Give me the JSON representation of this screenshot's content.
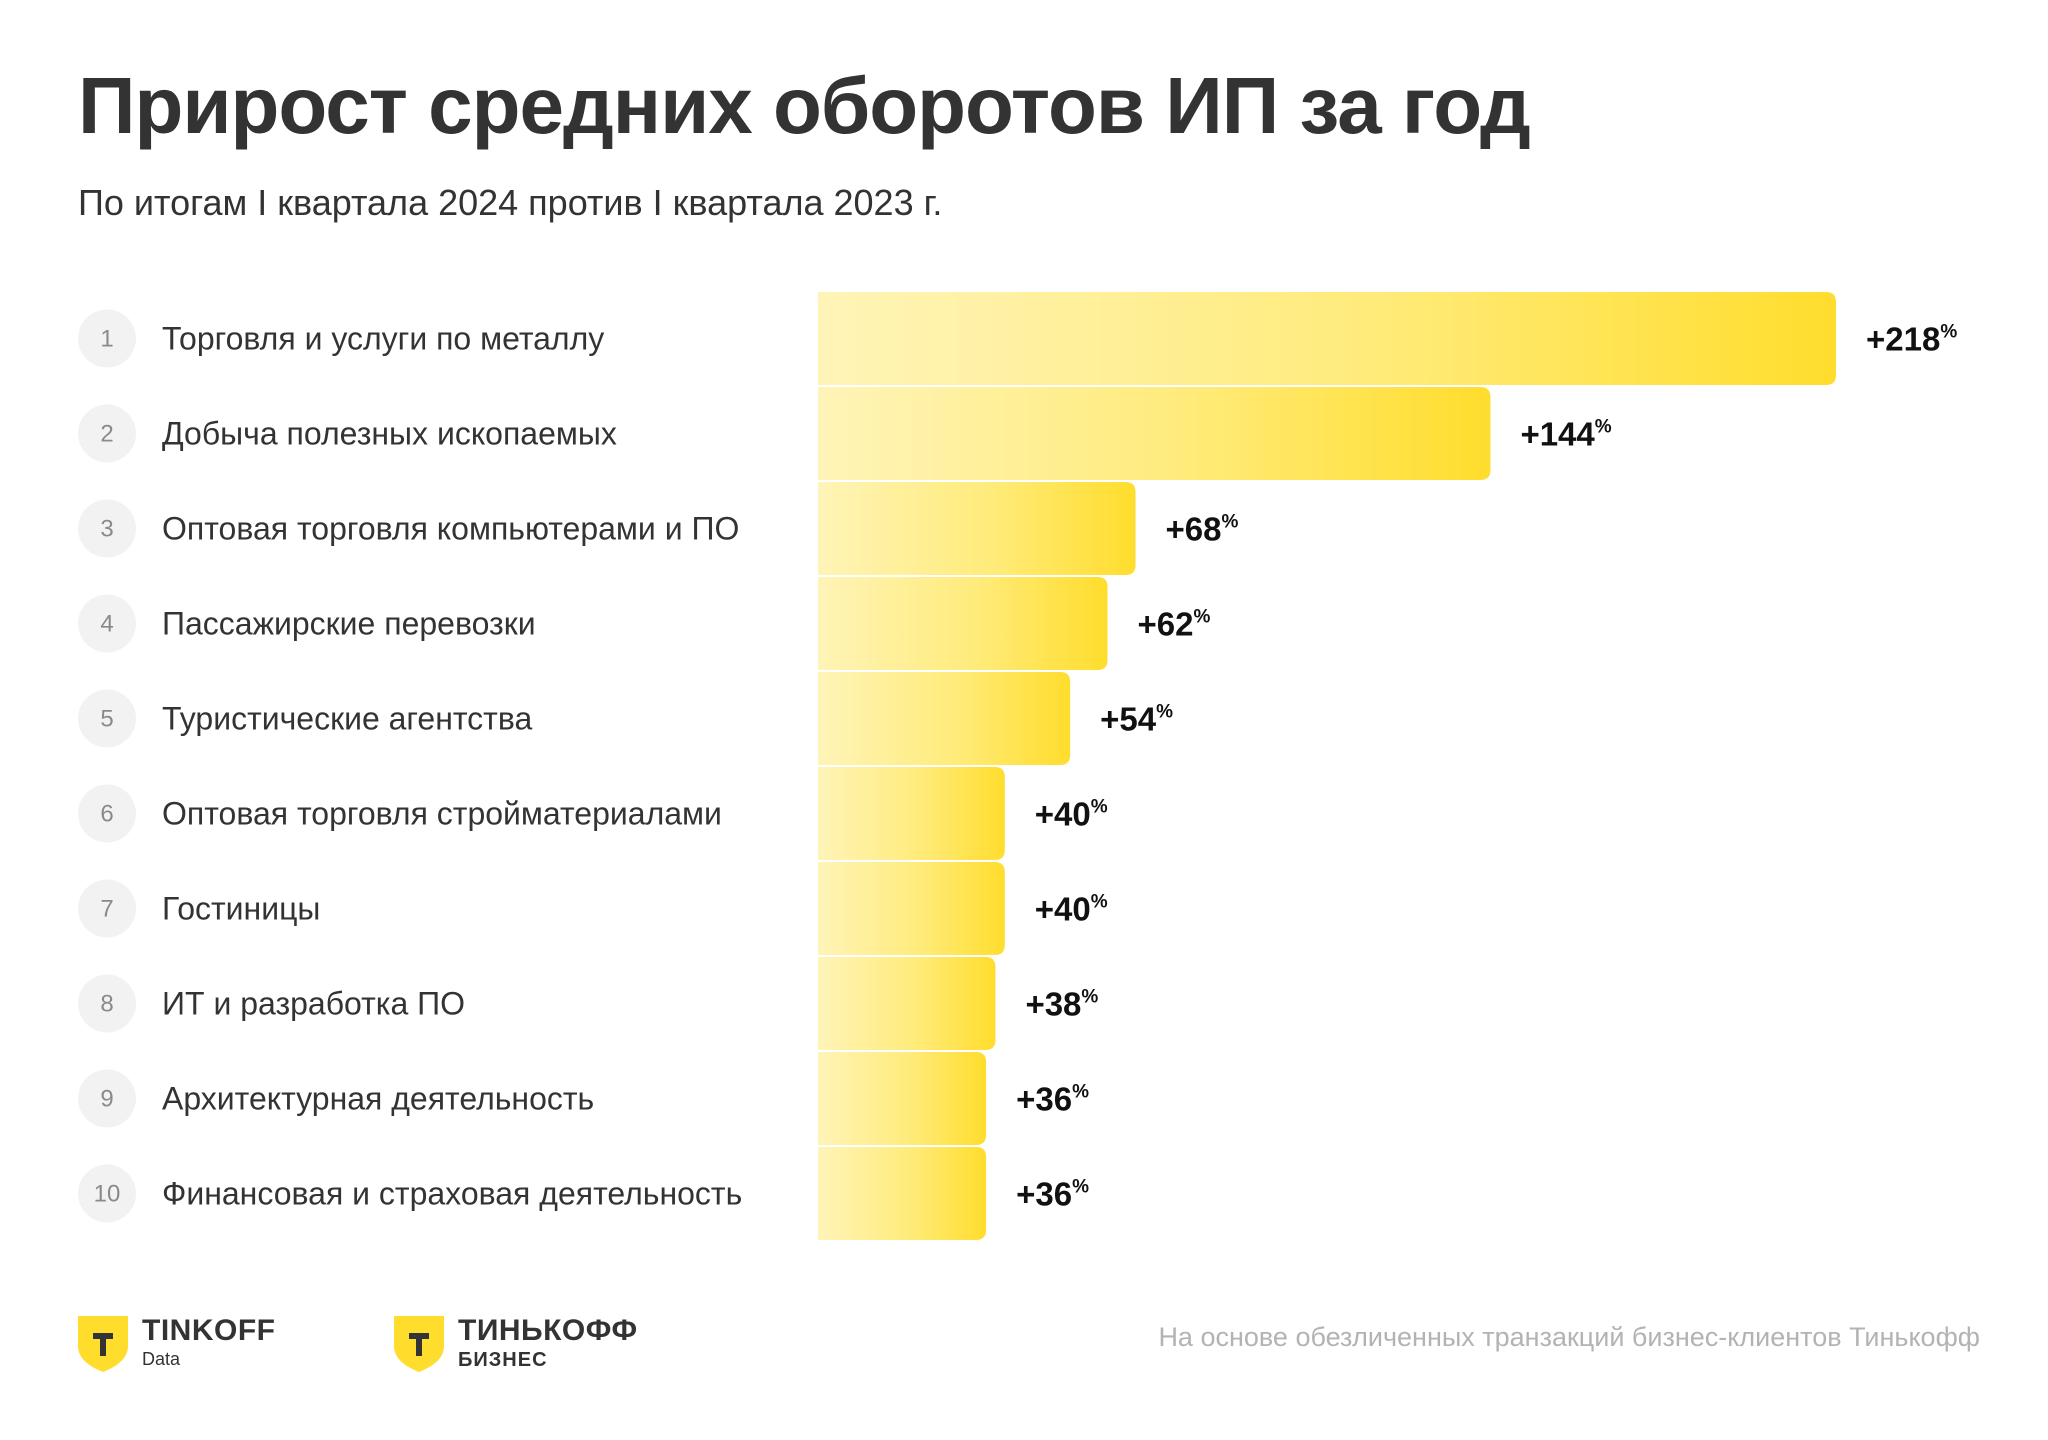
{
  "title": "Прирост средних оборотов ИП за год",
  "subtitle": "По итогам I квартала 2024 против I квартала 2023 г.",
  "footer_note": "На основе обезличенных транзакций бизнес-клиентов Тинькофф",
  "logos": [
    {
      "name": "TINKOFF",
      "sub": "Data",
      "icon": "tinkoff-shield-icon"
    },
    {
      "name": "ТИНЬКОФФ",
      "sub": "БИЗНЕС",
      "icon": "tinkoff-shield-icon"
    }
  ],
  "colors": {
    "bar_light": "#fff4b8",
    "bar_dark": "#ffdd2d",
    "text": "#333333",
    "muted": "#b3b3b3"
  },
  "chart_data": {
    "type": "bar",
    "orientation": "horizontal",
    "title": "Прирост средних оборотов ИП за год",
    "subtitle": "По итогам I квартала 2024 против I квартала 2023 г.",
    "unit": "%",
    "ranks": [
      "1",
      "2",
      "3",
      "4",
      "5",
      "6",
      "7",
      "8",
      "9",
      "10"
    ],
    "categories": [
      "Торговля и услуги по металлу",
      "Добыча полезных ископаемых",
      "Оптовая торговля компьютерами и ПО",
      "Пассажирские перевозки",
      "Туристические агентства",
      "Оптовая торговля стройматериалами",
      "Гостиницы",
      "ИТ и разработка ПО",
      "Архитектурная деятельность",
      "Финансовая и страховая деятельность"
    ],
    "values": [
      218,
      144,
      68,
      62,
      54,
      40,
      40,
      38,
      36,
      36
    ],
    "value_labels": [
      "+218",
      "+144",
      "+68",
      "+62",
      "+54",
      "+40",
      "+40",
      "+38",
      "+36",
      "+36"
    ]
  }
}
